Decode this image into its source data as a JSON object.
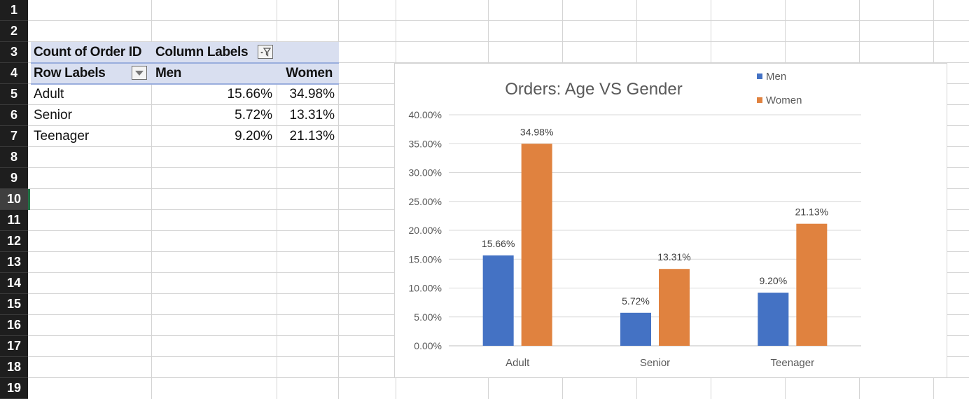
{
  "sheet": {
    "row_numbers": [
      "1",
      "2",
      "3",
      "4",
      "5",
      "6",
      "7",
      "8",
      "9",
      "10",
      "11",
      "12",
      "13",
      "14",
      "15",
      "16",
      "17",
      "18",
      "19"
    ],
    "selected_row": "10"
  },
  "pivot": {
    "value_field": "Count of Order ID",
    "column_labels": "Column Labels",
    "row_labels": "Row Labels",
    "columns": [
      "Men",
      "Women"
    ],
    "rows": [
      {
        "label": "Adult",
        "men": "15.66%",
        "women": "34.98%"
      },
      {
        "label": "Senior",
        "men": "5.72%",
        "women": "13.31%"
      },
      {
        "label": "Teenager",
        "men": "9.20%",
        "women": "21.13%"
      }
    ],
    "icons": {
      "filter": "filter-funnel-icon",
      "dropdown": "dropdown-arrow-icon"
    }
  },
  "chart_data": {
    "type": "bar",
    "title": "Orders: Age VS Gender",
    "categories": [
      "Adult",
      "Senior",
      "Teenager"
    ],
    "series": [
      {
        "name": "Men",
        "values": [
          15.66,
          5.72,
          9.2
        ],
        "labels": [
          "15.66%",
          "5.72%",
          "9.20%"
        ],
        "color": "#4472c4"
      },
      {
        "name": "Women",
        "values": [
          34.98,
          13.31,
          21.13
        ],
        "labels": [
          "34.98%",
          "13.31%",
          "21.13%"
        ],
        "color": "#e0823f"
      }
    ],
    "ylim": [
      0,
      40
    ],
    "yticks": [
      0,
      5,
      10,
      15,
      20,
      25,
      30,
      35,
      40
    ],
    "ytick_labels": [
      "0.00%",
      "5.00%",
      "10.00%",
      "15.00%",
      "20.00%",
      "25.00%",
      "30.00%",
      "35.00%",
      "40.00%"
    ],
    "grid": true,
    "legend": "top-right"
  }
}
